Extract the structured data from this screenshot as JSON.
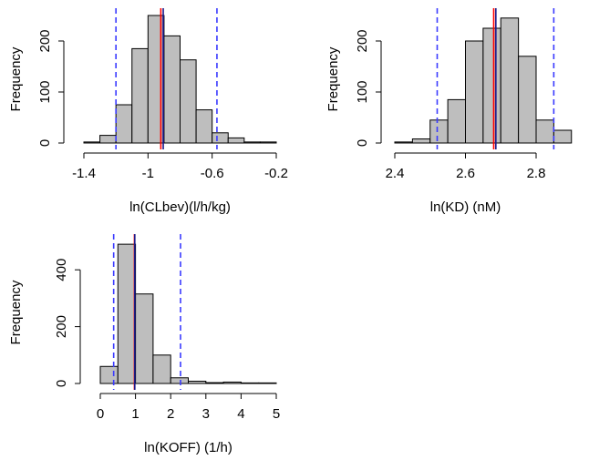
{
  "chart_data": [
    {
      "type": "histogram",
      "x_label": "ln(CLbev)(l/h/kg)",
      "y_label": "Frequency",
      "bins": [
        -1.4,
        -1.3,
        -1.2,
        -1.1,
        -1.0,
        -0.9,
        -0.8,
        -0.7,
        -0.6,
        -0.5,
        -0.4,
        -0.3,
        -0.2
      ],
      "values": [
        2,
        15,
        75,
        185,
        250,
        210,
        163,
        65,
        20,
        10,
        2,
        2
      ],
      "color": "#bebebe",
      "xlim": [
        -1.4,
        -0.2
      ],
      "xticks": [
        -1.4,
        -1.0,
        -0.6,
        -0.2
      ],
      "ylim": [
        0,
        250
      ],
      "yticks": [
        0,
        100,
        200
      ],
      "reference_lines": [
        {
          "value": -1.2,
          "color": "#3a3aff",
          "dashed": true
        },
        {
          "value": -0.57,
          "color": "#3a3aff",
          "dashed": true
        },
        {
          "value": -0.92,
          "color": "#ff0000",
          "dashed": false
        },
        {
          "value": -0.905,
          "color": "#1a1a8c",
          "dashed": false
        }
      ]
    },
    {
      "type": "histogram",
      "x_label": "ln(KD) (nM)",
      "y_label": "Frequency",
      "bins": [
        2.4,
        2.45,
        2.5,
        2.55,
        2.6,
        2.65,
        2.7,
        2.75,
        2.8,
        2.85,
        2.9
      ],
      "values": [
        2,
        8,
        45,
        85,
        200,
        225,
        245,
        170,
        45,
        25
      ],
      "color": "#bebebe",
      "xlim": [
        2.4,
        2.8
      ],
      "xticks": [
        2.4,
        2.6,
        2.8
      ],
      "ylim": [
        0,
        250
      ],
      "yticks": [
        0,
        100,
        200
      ],
      "reference_lines": [
        {
          "value": 2.52,
          "color": "#3a3aff",
          "dashed": true
        },
        {
          "value": 2.85,
          "color": "#3a3aff",
          "dashed": true
        },
        {
          "value": 2.68,
          "color": "#ff0000",
          "dashed": false
        },
        {
          "value": 2.686,
          "color": "#1a1a8c",
          "dashed": false
        }
      ]
    },
    {
      "type": "histogram",
      "x_label": "ln(KOFF) (1/h)",
      "y_label": "Frequency",
      "bins": [
        0,
        0.5,
        1,
        1.5,
        2,
        2.5,
        3,
        3.5,
        4,
        4.5,
        5
      ],
      "values": [
        60,
        490,
        315,
        100,
        20,
        8,
        3,
        5,
        2,
        2
      ],
      "color": "#bebebe",
      "xlim": [
        0,
        5
      ],
      "xticks": [
        0,
        1,
        2,
        3,
        4,
        5
      ],
      "ylim": [
        0,
        500
      ],
      "yticks": [
        0,
        200,
        400
      ],
      "reference_lines": [
        {
          "value": 0.38,
          "color": "#3a3aff",
          "dashed": true
        },
        {
          "value": 2.28,
          "color": "#3a3aff",
          "dashed": true
        },
        {
          "value": 0.97,
          "color": "#ff0000",
          "dashed": false
        },
        {
          "value": 0.98,
          "color": "#1a1a8c",
          "dashed": false
        }
      ]
    }
  ]
}
